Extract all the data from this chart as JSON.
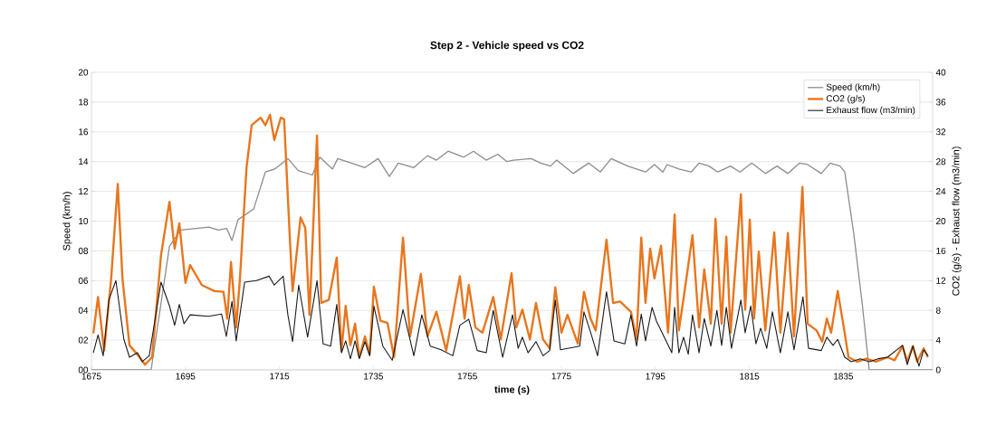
{
  "chart_data": {
    "type": "line",
    "title": "Step 2 - Vehicle speed vs CO2",
    "xlabel": "time (s)",
    "ylabel": "Speed (km/h)",
    "y2label": "CO2 (g/s) - Exhaust flow (m3/min)",
    "xlim": [
      1675,
      1854
    ],
    "xticks": [
      1675,
      1695,
      1715,
      1735,
      1755,
      1775,
      1795,
      1815,
      1835
    ],
    "ylim": [
      0,
      20
    ],
    "yticks": [
      {
        "value": 0,
        "label": "00"
      },
      {
        "value": 2,
        "label": "02"
      },
      {
        "value": 4,
        "label": "04"
      },
      {
        "value": 6,
        "label": "06"
      },
      {
        "value": 8,
        "label": "08"
      },
      {
        "value": 10,
        "label": "10"
      },
      {
        "value": 12,
        "label": "12"
      },
      {
        "value": 14,
        "label": "14"
      },
      {
        "value": 16,
        "label": "16"
      },
      {
        "value": 18,
        "label": "18"
      },
      {
        "value": 20,
        "label": "20"
      }
    ],
    "y2lim": [
      0,
      40
    ],
    "y2ticks": [
      0,
      4,
      8,
      12,
      16,
      20,
      24,
      28,
      32,
      36,
      40
    ],
    "grid": "y",
    "legend": "top right",
    "series": [
      {
        "name": "Speed (km/h)",
        "color": "#8c8c8c",
        "x": [
          1675,
          1687.7,
          1691.6,
          1694,
          1697,
          1700,
          1702,
          1703.8,
          1704.9,
          1706.2,
          1709.5,
          1712,
          1714,
          1716.8,
          1719,
          1722,
          1723.6,
          1726.3,
          1727.4,
          1733.2,
          1736,
          1738.4,
          1740.3,
          1743.6,
          1746.5,
          1748.4,
          1750.9,
          1754.2,
          1756.3,
          1759,
          1761.5,
          1763.4,
          1764.8,
          1768.6,
          1770.6,
          1772.7,
          1774,
          1777.5,
          1780.8,
          1783.3,
          1785.6,
          1789.1,
          1792.9,
          1794.8,
          1796.6,
          1797.5,
          1800,
          1802.6,
          1804.3,
          1806.4,
          1808.3,
          1811,
          1813,
          1815.5,
          1818.4,
          1820.9,
          1823.2,
          1825.7,
          1827.4,
          1830.3,
          1832.2,
          1834.3,
          1835.3,
          1837.2,
          1839,
          1840.5,
          1854
        ],
        "values": [
          0,
          0,
          8.3,
          9.4,
          9.5,
          9.6,
          9.4,
          9.5,
          8.7,
          10.1,
          10.8,
          13.3,
          13.5,
          14.2,
          13.4,
          13.1,
          14.3,
          13.5,
          14.2,
          13.6,
          14.2,
          13.0,
          13.9,
          13.6,
          14.4,
          14.1,
          14.7,
          14.3,
          14.7,
          14.1,
          14.5,
          14.0,
          14.1,
          14.2,
          13.9,
          13.7,
          14.1,
          13.2,
          13.9,
          13.3,
          14.2,
          13.7,
          13.3,
          13.8,
          13.3,
          13.8,
          13.5,
          13.3,
          13.9,
          13.7,
          13.3,
          13.7,
          13.3,
          13.9,
          13.2,
          13.7,
          13.2,
          13.9,
          13.8,
          13.2,
          13.9,
          13.7,
          13.3,
          9.2,
          4.5,
          0,
          0
        ]
      },
      {
        "name": "CO2 (g/s)",
        "color": "#e8761e",
        "axis": "y2",
        "x": [
          1675.4,
          1676.4,
          1677.7,
          1679.2,
          1680.6,
          1681.6,
          1683.1,
          1685,
          1686.4,
          1687.9,
          1689.8,
          1691.6,
          1692.7,
          1693.7,
          1695,
          1696,
          1698.5,
          1701.2,
          1703.1,
          1703.9,
          1704.7,
          1705.8,
          1706.6,
          1708,
          1709.1,
          1711,
          1712,
          1713,
          1713.9,
          1715.3,
          1716,
          1717.2,
          1717.8,
          1719.5,
          1720.5,
          1721.4,
          1723,
          1723.9,
          1725.5,
          1727.2,
          1728.2,
          1729.1,
          1730.1,
          1731.1,
          1732,
          1733.2,
          1734.2,
          1735.1,
          1736.5,
          1738,
          1739.4,
          1741.3,
          1742.8,
          1745.1,
          1746.5,
          1748.4,
          1750.5,
          1753.4,
          1754.4,
          1755.3,
          1756.7,
          1758.2,
          1760.5,
          1762.1,
          1764.4,
          1765.4,
          1766.7,
          1768.3,
          1769.6,
          1771.1,
          1772.5,
          1773.7,
          1775,
          1776.3,
          1778.5,
          1779.8,
          1781.2,
          1782.3,
          1784.6,
          1786,
          1787.5,
          1789.8,
          1791,
          1792,
          1792.9,
          1793.9,
          1794.8,
          1796.2,
          1797.7,
          1799.1,
          1800,
          1801,
          1802.9,
          1804.3,
          1805.4,
          1806.8,
          1807.8,
          1809.1,
          1810.1,
          1811,
          1813.2,
          1814.1,
          1815.1,
          1816,
          1817,
          1818.4,
          1820.3,
          1821.6,
          1823.2,
          1824.5,
          1826.3,
          1827.4,
          1829.3,
          1830.5,
          1831.5,
          1832.4,
          1833.8,
          1835.1,
          1836.1,
          1838,
          1839.9,
          1841.9,
          1844.4,
          1845.9,
          1847.6,
          1848.6,
          1849.8,
          1850.7,
          1852.1,
          1853
        ],
        "values": [
          4.9,
          9.8,
          2.6,
          12.3,
          25.0,
          12.3,
          3.3,
          1.9,
          0.7,
          1.7,
          15.4,
          22.6,
          16.3,
          19.7,
          11.7,
          14.1,
          11.4,
          10.6,
          10.5,
          6.9,
          14.5,
          5.7,
          12.3,
          27.2,
          32.9,
          33.9,
          32.9,
          34.3,
          30.9,
          33.9,
          33.7,
          17.9,
          10.6,
          20.5,
          19.1,
          7.4,
          31.5,
          9.0,
          9.4,
          15.1,
          2.6,
          8.6,
          3.3,
          6.2,
          1.7,
          4.5,
          2.1,
          11.2,
          6.6,
          6.3,
          1.7,
          17.8,
          4.5,
          12.9,
          4.5,
          7.8,
          2.6,
          12.6,
          6.9,
          11.4,
          5.7,
          5.0,
          9.8,
          4.1,
          13.0,
          5.7,
          8.1,
          4.1,
          9.0,
          4.1,
          2.9,
          11.1,
          5.0,
          7.4,
          3.5,
          10.5,
          6.9,
          5.3,
          17.5,
          9.0,
          9.2,
          7.8,
          4.1,
          17.8,
          9.0,
          16.3,
          12.3,
          16.7,
          5.0,
          20.9,
          5.3,
          9.6,
          18.1,
          5.7,
          13.5,
          6.2,
          20.3,
          6.2,
          17.9,
          5.0,
          23.6,
          8.1,
          20.2,
          6.9,
          15.9,
          5.3,
          18.5,
          5.0,
          18.4,
          4.5,
          24.6,
          6.2,
          5.3,
          3.8,
          6.9,
          5.0,
          10.6,
          5.7,
          1.7,
          1.1,
          1.5,
          1.1,
          1.7,
          1.3,
          3.2,
          1.1,
          3.2,
          1.1,
          2.9,
          1.7
        ]
      },
      {
        "name": "Exhaust flow (m3/min)",
        "color": "#1a1a1a",
        "axis": "y2",
        "x": [
          1675.4,
          1676.4,
          1677.5,
          1678.7,
          1680.2,
          1681.9,
          1683.1,
          1684.8,
          1685.8,
          1687.3,
          1689.8,
          1691.6,
          1692.7,
          1693.7,
          1694.7,
          1696,
          1699.9,
          1702.7,
          1703.7,
          1704.9,
          1705.8,
          1707.6,
          1710.1,
          1712.8,
          1713.9,
          1715.8,
          1716.8,
          1717.8,
          1719.1,
          1721,
          1723,
          1724.3,
          1725.9,
          1727.2,
          1728.2,
          1729.1,
          1730.1,
          1731.1,
          1732,
          1733.2,
          1734.2,
          1735.1,
          1737,
          1739,
          1741.3,
          1743.6,
          1745.3,
          1747.1,
          1749.4,
          1751.9,
          1753.4,
          1755.3,
          1757.1,
          1759,
          1760.5,
          1762.5,
          1764.6,
          1765.8,
          1766.7,
          1767.9,
          1769.6,
          1771.1,
          1772.5,
          1773.7,
          1774.8,
          1778.9,
          1779.8,
          1781.2,
          1782.7,
          1784.6,
          1786.2,
          1788.5,
          1789.8,
          1791,
          1792,
          1792.9,
          1794.3,
          1795.2,
          1798.5,
          1799.1,
          1800,
          1801,
          1802,
          1802.9,
          1804.3,
          1805.4,
          1806.8,
          1808.1,
          1809.1,
          1810.1,
          1811.2,
          1813.2,
          1814.1,
          1815.3,
          1816.4,
          1817.4,
          1818.7,
          1819.9,
          1821.6,
          1823.2,
          1824.5,
          1826.4,
          1827.6,
          1830.3,
          1831.5,
          1832.8,
          1833.8,
          1835.3,
          1836.7,
          1838.6,
          1840.5,
          1842.4,
          1844.4,
          1847.6,
          1848.6,
          1849.8,
          1851.1,
          1852.1,
          1853
        ],
        "values": [
          2.3,
          4.7,
          1.9,
          9.4,
          12.0,
          4.1,
          1.7,
          2.3,
          1.1,
          1.9,
          11.8,
          8.6,
          6.0,
          8.8,
          6.2,
          7.4,
          7.2,
          7.5,
          4.5,
          9.2,
          3.9,
          11.8,
          12.0,
          12.6,
          11.4,
          12.6,
          7.4,
          3.8,
          11.4,
          4.4,
          12.0,
          3.5,
          3.2,
          8.8,
          2.3,
          3.9,
          1.5,
          3.9,
          1.5,
          3.8,
          1.9,
          8.6,
          3.2,
          1.3,
          8.1,
          1.9,
          7.4,
          3.2,
          2.7,
          1.9,
          6.0,
          6.8,
          2.6,
          2.3,
          8.0,
          1.7,
          7.4,
          2.9,
          4.4,
          2.3,
          3.8,
          1.9,
          2.6,
          9.4,
          2.7,
          3.2,
          7.8,
          5.1,
          1.9,
          10.5,
          3.9,
          3.5,
          7.4,
          3.2,
          7.5,
          3.9,
          8.4,
          6.6,
          2.3,
          8.4,
          2.3,
          4.4,
          2.1,
          7.4,
          2.3,
          6.9,
          3.2,
          8.0,
          3.3,
          8.4,
          2.9,
          9.4,
          5.0,
          8.6,
          3.5,
          5.6,
          2.9,
          7.8,
          2.3,
          7.8,
          2.7,
          9.8,
          2.9,
          2.6,
          4.4,
          3.3,
          4.1,
          1.7,
          1.1,
          1.5,
          1.1,
          1.5,
          1.7,
          3.3,
          0.7,
          3.2,
          0.5,
          2.7,
          1.9
        ]
      }
    ]
  }
}
